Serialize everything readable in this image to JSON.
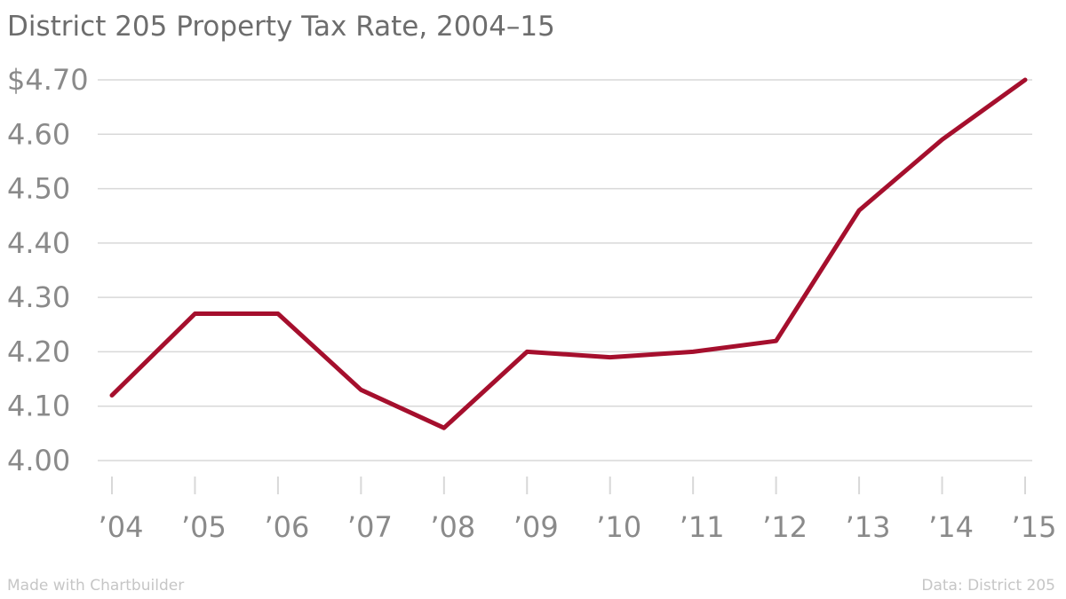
{
  "chart_data": {
    "type": "line",
    "title": "District 205 Property Tax Rate, 2004–15",
    "categories": [
      "’04",
      "’05",
      "’06",
      "’07",
      "’08",
      "’09",
      "’10",
      "’11",
      "’12",
      "’13",
      "’14",
      "’15"
    ],
    "series": [
      {
        "name": "Property tax rate",
        "values": [
          4.12,
          4.27,
          4.27,
          4.13,
          4.06,
          4.2,
          4.19,
          4.2,
          4.22,
          4.46,
          4.59,
          4.7
        ]
      }
    ],
    "y_ticks": [
      4.0,
      4.1,
      4.2,
      4.3,
      4.4,
      4.5,
      4.6,
      4.7
    ],
    "y_tick_labels": [
      "4.00",
      "4.10",
      "4.20",
      "4.30",
      "4.40",
      "4.50",
      "4.60",
      "$4.70"
    ],
    "ylim": [
      4.0,
      4.7
    ],
    "xlabel": "",
    "ylabel": "",
    "grid": true,
    "line_color": "#a50f2d",
    "grid_color": "#d8d8d8",
    "text_color": "#8a8a8a"
  },
  "footer": {
    "credit": "Made with Chartbuilder",
    "source": "Data: District 205"
  }
}
